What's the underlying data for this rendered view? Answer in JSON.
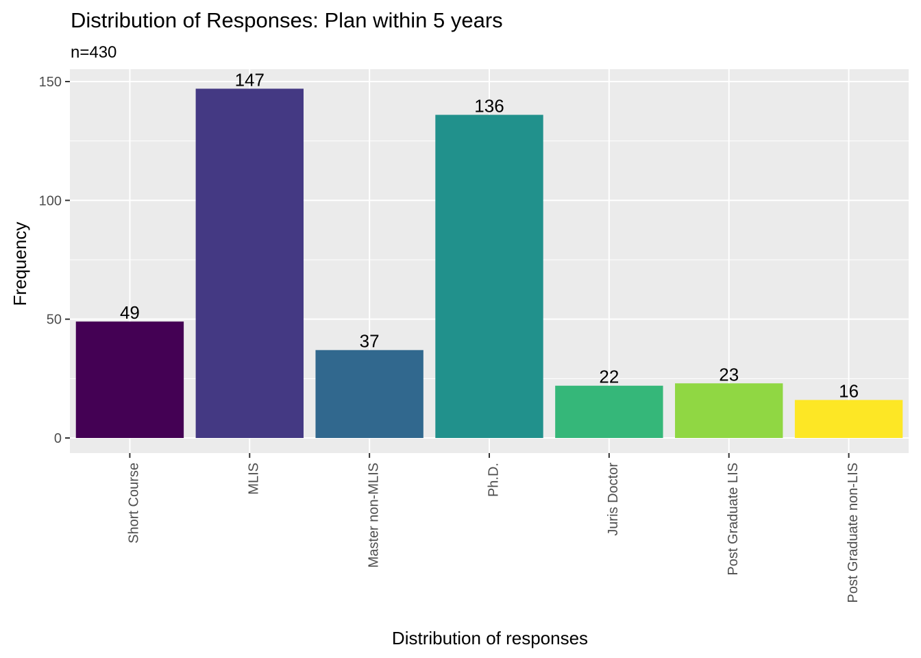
{
  "chart_data": {
    "type": "bar",
    "title": "Distribution of Responses: Plan within 5 years",
    "subtitle": "n=430",
    "xlabel": "Distribution of responses",
    "ylabel": "Frequency",
    "categories": [
      "Short Course",
      "MLIS",
      "Master non-MLIS",
      "Ph.D.",
      "Juris Doctor",
      "Post Graduate LIS",
      "Post Graduate non-LIS"
    ],
    "values": [
      49,
      147,
      37,
      136,
      22,
      23,
      16
    ],
    "value_labels": [
      "49",
      "147",
      "37",
      "136",
      "22",
      "23",
      "16"
    ],
    "colors": [
      "#440154",
      "#443983",
      "#31688e",
      "#21918c",
      "#35b779",
      "#90d743",
      "#fde725"
    ],
    "ylim": [
      0,
      150
    ],
    "yticks": [
      0,
      50,
      100,
      150
    ],
    "ytick_labels": [
      "0",
      "50",
      "100",
      "150"
    ],
    "grid": true,
    "legend": "none",
    "panel_background": "#ebebeb",
    "grid_color": "#ffffff"
  }
}
